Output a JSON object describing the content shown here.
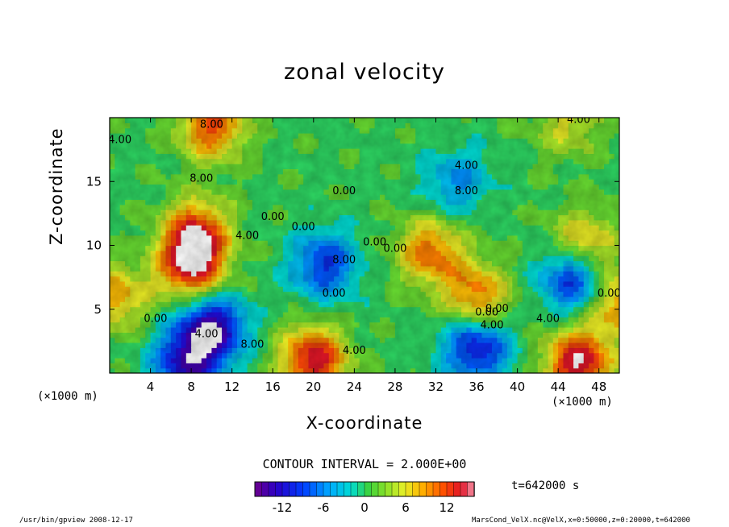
{
  "chart_data": {
    "type": "heatmap",
    "title": "zonal velocity",
    "xlabel": "X-coordinate",
    "ylabel": "Z-coordinate",
    "x_unit_label": "(×1000 m)",
    "x_ticks": [
      4,
      8,
      12,
      16,
      20,
      24,
      28,
      32,
      36,
      40,
      44,
      48
    ],
    "y_ticks": [
      5,
      10,
      15
    ],
    "xlim": [
      0,
      50
    ],
    "ylim": [
      0,
      20
    ],
    "contour_interval_text": "CONTOUR INTERVAL = 2.000E+00",
    "time_text": "t=642000 s",
    "colorbar": {
      "range": [
        -16,
        16
      ],
      "ticks": [
        "-12",
        "-6",
        "0",
        "6",
        "12"
      ],
      "tick_values": [
        -12,
        -6,
        0,
        6,
        12
      ]
    },
    "features": [
      {
        "x": 8.5,
        "z": 11,
        "value": 12
      },
      {
        "x": 8,
        "z": 8.3,
        "value": 13
      },
      {
        "x": 21,
        "z": 8.5,
        "value": -10
      },
      {
        "x": 31.5,
        "z": 9.5,
        "value": 10
      },
      {
        "x": 36,
        "z": 6,
        "value": 10
      },
      {
        "x": 45.5,
        "z": 7.5,
        "value": -12
      },
      {
        "x": 46.5,
        "z": 10,
        "value": 9
      },
      {
        "x": 50,
        "z": 5.5,
        "value": 9
      },
      {
        "x": 20,
        "z": 1,
        "value": 14
      },
      {
        "x": 46,
        "z": 0.8,
        "value": 15
      },
      {
        "x": 10,
        "z": 3.5,
        "value": -15
      },
      {
        "x": 7.5,
        "z": 0.8,
        "value": -12
      },
      {
        "x": 36,
        "z": 2,
        "value": -12
      },
      {
        "x": 34,
        "z": 15,
        "value": -6
      },
      {
        "x": 0.5,
        "z": 6,
        "value": 8
      },
      {
        "x": 10,
        "z": 19.3,
        "value": 11
      },
      {
        "x": 45,
        "z": 19.5,
        "value": 5
      }
    ],
    "contour_labels": [
      "8.00",
      "8.00",
      "4.00",
      "0.00",
      "0.00",
      "0.00",
      "8.00",
      "0.00",
      "0.00",
      "4.00",
      "8.00",
      "4.00",
      "0.00",
      "4.00",
      "4.00",
      "8.00",
      "4.00",
      "0.00",
      "4.00",
      "0.00",
      "4.00",
      "0.00",
      "0.00"
    ]
  },
  "footer": {
    "left": "/usr/bin/gpview   2008-12-17",
    "right": "MarsCond_VelX.nc@VelX,x=0:50000,z=0:20000,t=642000"
  }
}
